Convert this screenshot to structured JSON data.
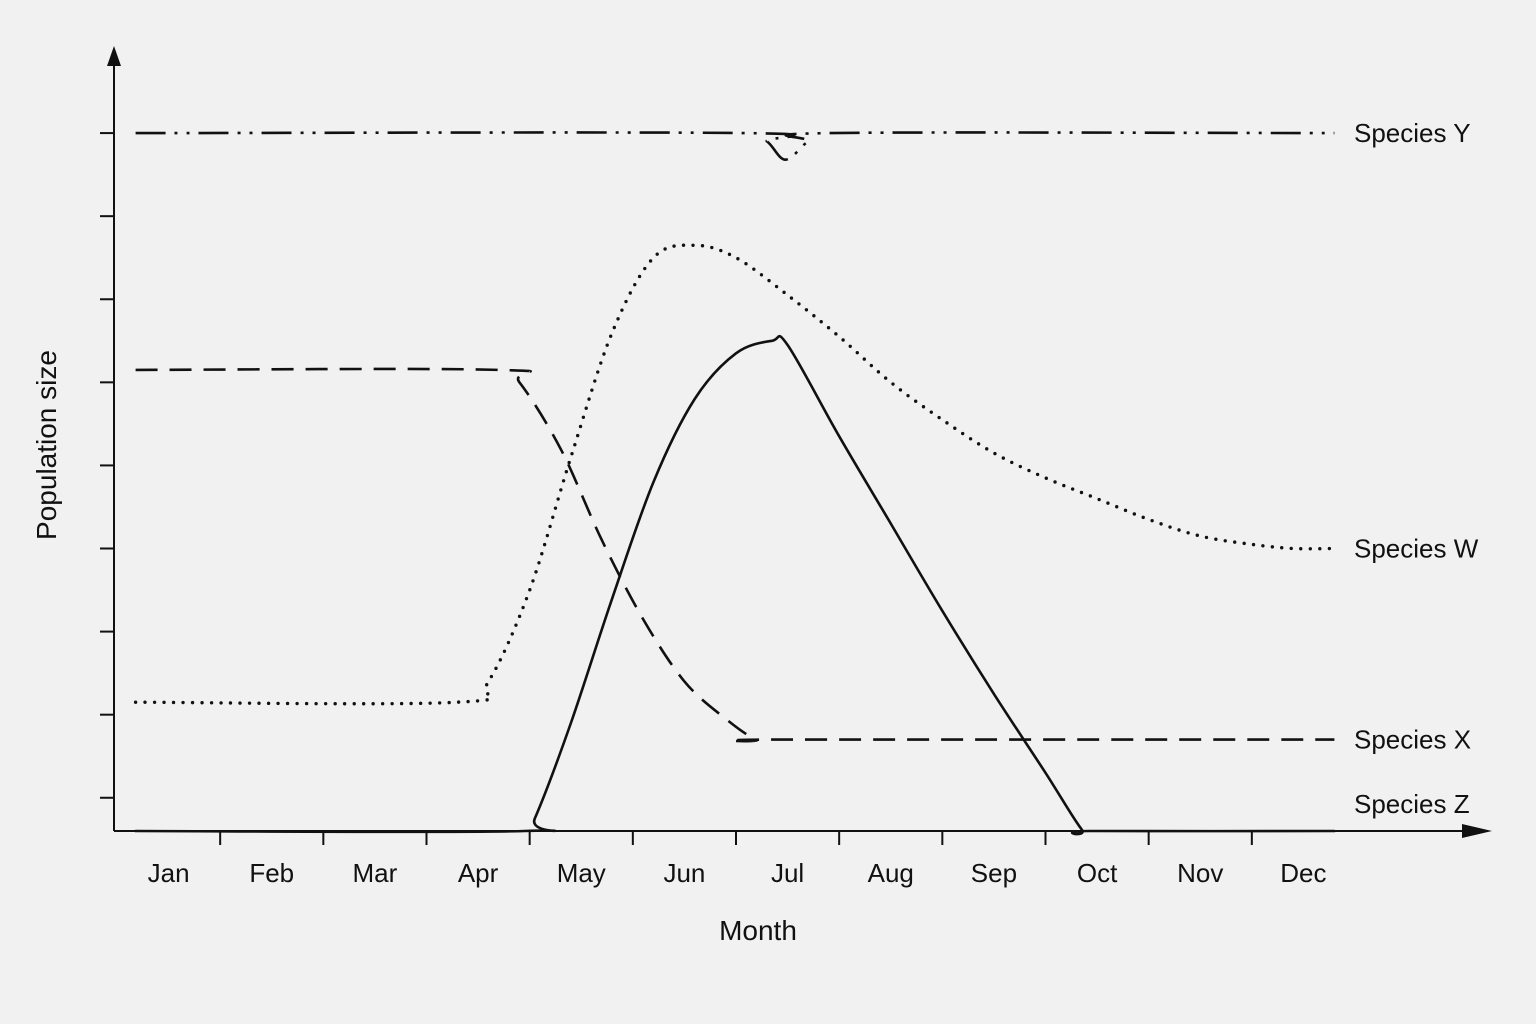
{
  "chart_data": {
    "type": "line",
    "xlabel": "Month",
    "ylabel": "Population size",
    "categories": [
      "Jan",
      "Feb",
      "Mar",
      "Apr",
      "May",
      "Jun",
      "Jul",
      "Aug",
      "Sep",
      "Oct",
      "Nov",
      "Dec"
    ],
    "xlim": [
      0,
      12
    ],
    "ylim": [
      0,
      9.4
    ],
    "y_ticks": [
      0.4,
      1.4,
      2.4,
      3.4,
      4.4,
      5.4,
      6.4,
      7.4,
      8.4
    ],
    "grid": false,
    "legend": "none (series labelled at right end)",
    "series": [
      {
        "name": "Species Y",
        "style": "dash-dot-dot",
        "points": [
          [
            0.18,
            8.4
          ],
          [
            6.1,
            8.4
          ],
          [
            6.3,
            8.3
          ],
          [
            6.48,
            8.08
          ],
          [
            6.7,
            8.3
          ],
          [
            6.9,
            8.4
          ],
          [
            11.8,
            8.4
          ]
        ]
      },
      {
        "name": "Species W",
        "style": "dotted",
        "points": [
          [
            0.18,
            1.55
          ],
          [
            3.3,
            1.55
          ],
          [
            3.6,
            1.8
          ],
          [
            4.0,
            2.9
          ],
          [
            4.4,
            4.5
          ],
          [
            4.8,
            6.0
          ],
          [
            5.2,
            6.9
          ],
          [
            5.6,
            7.05
          ],
          [
            6.0,
            6.9
          ],
          [
            6.5,
            6.45
          ],
          [
            7.0,
            5.95
          ],
          [
            7.5,
            5.4
          ],
          [
            8.0,
            4.95
          ],
          [
            8.5,
            4.55
          ],
          [
            9.0,
            4.25
          ],
          [
            9.5,
            4.0
          ],
          [
            10.0,
            3.75
          ],
          [
            10.5,
            3.55
          ],
          [
            11.0,
            3.45
          ],
          [
            11.4,
            3.4
          ],
          [
            11.8,
            3.4
          ]
        ]
      },
      {
        "name": "Species X",
        "style": "dashed",
        "points": [
          [
            0.18,
            5.55
          ],
          [
            3.7,
            5.55
          ],
          [
            3.9,
            5.4
          ],
          [
            4.3,
            4.6
          ],
          [
            4.7,
            3.5
          ],
          [
            5.1,
            2.55
          ],
          [
            5.5,
            1.8
          ],
          [
            5.9,
            1.35
          ],
          [
            6.2,
            1.1
          ],
          [
            6.4,
            1.1
          ],
          [
            11.8,
            1.1
          ]
        ]
      },
      {
        "name": "Species Z",
        "style": "solid",
        "points": [
          [
            0.18,
            0.0
          ],
          [
            3.95,
            0.0
          ],
          [
            4.05,
            0.15
          ],
          [
            4.4,
            1.3
          ],
          [
            4.8,
            2.8
          ],
          [
            5.2,
            4.2
          ],
          [
            5.6,
            5.2
          ],
          [
            6.0,
            5.75
          ],
          [
            6.35,
            5.9
          ],
          [
            6.5,
            5.85
          ],
          [
            7.0,
            4.75
          ],
          [
            7.5,
            3.7
          ],
          [
            8.0,
            2.65
          ],
          [
            8.5,
            1.65
          ],
          [
            9.0,
            0.7
          ],
          [
            9.35,
            0.02
          ],
          [
            9.45,
            0.0
          ],
          [
            11.8,
            0.0
          ]
        ]
      }
    ]
  }
}
